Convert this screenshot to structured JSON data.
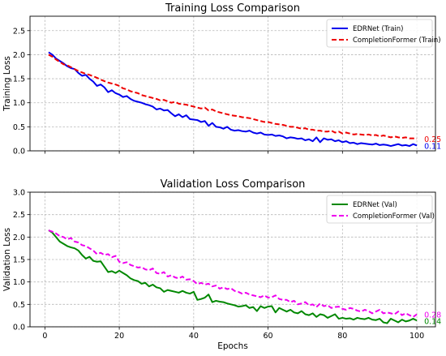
{
  "chart_data": [
    {
      "type": "line",
      "title": "Training Loss Comparison",
      "xlabel": "",
      "ylabel": "Training Loss",
      "xlim": [
        -4,
        105
      ],
      "ylim": [
        0,
        2.8
      ],
      "xticks": [
        0,
        20,
        40,
        60,
        80,
        100
      ],
      "xtick_labels": [
        "",
        "",
        "",
        "",
        "",
        ""
      ],
      "yticks": [
        0.0,
        0.5,
        1.0,
        1.5,
        2.0,
        2.5
      ],
      "ytick_labels": [
        "0.0",
        "0.5",
        "1.0",
        "1.5",
        "2.0",
        "2.5"
      ],
      "grid": true,
      "legend_position": "top-right",
      "series": [
        {
          "name": "EDRNet (Train)",
          "color": "#0000ee",
          "style": "solid",
          "end_label": "0.11",
          "x": [
            1,
            2,
            3,
            4,
            5,
            6,
            7,
            8,
            9,
            10,
            11,
            12,
            13,
            14,
            15,
            16,
            17,
            18,
            19,
            20,
            21,
            22,
            23,
            24,
            25,
            26,
            27,
            28,
            29,
            30,
            31,
            32,
            33,
            34,
            35,
            36,
            37,
            38,
            39,
            40,
            41,
            42,
            43,
            44,
            45,
            46,
            47,
            48,
            49,
            50,
            51,
            52,
            53,
            54,
            55,
            56,
            57,
            58,
            59,
            60,
            61,
            62,
            63,
            64,
            65,
            66,
            67,
            68,
            69,
            70,
            71,
            72,
            73,
            74,
            75,
            76,
            77,
            78,
            79,
            80,
            81,
            82,
            83,
            84,
            85,
            86,
            87,
            88,
            89,
            90,
            91,
            92,
            93,
            94,
            95,
            96,
            97,
            98,
            99,
            100
          ],
          "values": [
            2.05,
            2.0,
            1.92,
            1.87,
            1.82,
            1.76,
            1.72,
            1.7,
            1.62,
            1.56,
            1.58,
            1.5,
            1.44,
            1.35,
            1.38,
            1.32,
            1.22,
            1.26,
            1.2,
            1.17,
            1.12,
            1.14,
            1.08,
            1.04,
            1.02,
            1.0,
            0.97,
            0.95,
            0.92,
            0.86,
            0.88,
            0.84,
            0.85,
            0.78,
            0.72,
            0.76,
            0.7,
            0.74,
            0.66,
            0.65,
            0.64,
            0.6,
            0.62,
            0.52,
            0.58,
            0.5,
            0.49,
            0.46,
            0.5,
            0.44,
            0.42,
            0.43,
            0.41,
            0.4,
            0.42,
            0.38,
            0.36,
            0.38,
            0.34,
            0.33,
            0.34,
            0.31,
            0.32,
            0.3,
            0.26,
            0.28,
            0.27,
            0.25,
            0.26,
            0.22,
            0.24,
            0.2,
            0.28,
            0.18,
            0.26,
            0.23,
            0.24,
            0.2,
            0.22,
            0.18,
            0.2,
            0.16,
            0.17,
            0.14,
            0.16,
            0.15,
            0.14,
            0.13,
            0.15,
            0.12,
            0.13,
            0.12,
            0.1,
            0.12,
            0.14,
            0.11,
            0.12,
            0.1,
            0.14,
            0.11
          ]
        },
        {
          "name": "CompletionFormer (Train)",
          "color": "#ee0000",
          "style": "dashed",
          "end_label": "0.25",
          "x": [
            1,
            2,
            3,
            4,
            5,
            6,
            7,
            8,
            9,
            10,
            11,
            12,
            13,
            14,
            15,
            16,
            17,
            18,
            19,
            20,
            21,
            22,
            23,
            24,
            25,
            26,
            27,
            28,
            29,
            30,
            31,
            32,
            33,
            34,
            35,
            36,
            37,
            38,
            39,
            40,
            41,
            42,
            43,
            44,
            45,
            46,
            47,
            48,
            49,
            50,
            51,
            52,
            53,
            54,
            55,
            56,
            57,
            58,
            59,
            60,
            61,
            62,
            63,
            64,
            65,
            66,
            67,
            68,
            69,
            70,
            71,
            72,
            73,
            74,
            75,
            76,
            77,
            78,
            79,
            80,
            81,
            82,
            83,
            84,
            85,
            86,
            87,
            88,
            89,
            90,
            91,
            92,
            93,
            94,
            95,
            96,
            97,
            98,
            99,
            100
          ],
          "values": [
            2.0,
            1.96,
            1.9,
            1.85,
            1.8,
            1.78,
            1.74,
            1.7,
            1.66,
            1.63,
            1.6,
            1.58,
            1.55,
            1.52,
            1.48,
            1.45,
            1.42,
            1.4,
            1.38,
            1.35,
            1.3,
            1.28,
            1.24,
            1.22,
            1.2,
            1.16,
            1.14,
            1.12,
            1.1,
            1.08,
            1.05,
            1.06,
            1.03,
            1.0,
            1.02,
            0.98,
            0.97,
            0.96,
            0.94,
            0.92,
            0.9,
            0.88,
            0.9,
            0.84,
            0.86,
            0.82,
            0.8,
            0.78,
            0.76,
            0.74,
            0.73,
            0.72,
            0.7,
            0.69,
            0.68,
            0.66,
            0.64,
            0.62,
            0.6,
            0.6,
            0.58,
            0.56,
            0.55,
            0.54,
            0.52,
            0.5,
            0.5,
            0.48,
            0.46,
            0.47,
            0.44,
            0.44,
            0.42,
            0.42,
            0.4,
            0.4,
            0.42,
            0.38,
            0.4,
            0.36,
            0.38,
            0.36,
            0.34,
            0.35,
            0.34,
            0.33,
            0.34,
            0.32,
            0.33,
            0.3,
            0.32,
            0.3,
            0.28,
            0.3,
            0.28,
            0.27,
            0.28,
            0.26,
            0.26,
            0.25
          ]
        }
      ]
    },
    {
      "type": "line",
      "title": "Validation Loss Comparison",
      "xlabel": "Epochs",
      "ylabel": "Validation Loss",
      "xlim": [
        -4,
        105
      ],
      "ylim": [
        0,
        3.0
      ],
      "xticks": [
        0,
        20,
        40,
        60,
        80,
        100
      ],
      "xtick_labels": [
        "0",
        "20",
        "40",
        "60",
        "80",
        "100"
      ],
      "yticks": [
        0.0,
        0.5,
        1.0,
        1.5,
        2.0,
        2.5,
        3.0
      ],
      "ytick_labels": [
        "0.0",
        "0.5",
        "1.0",
        "1.5",
        "2.0",
        "2.5",
        "3.0"
      ],
      "grid": true,
      "legend_position": "top-right",
      "series": [
        {
          "name": "EDRNet (Val)",
          "color": "#008800",
          "style": "solid",
          "end_label": "0.14",
          "x": [
            1,
            2,
            3,
            4,
            5,
            6,
            7,
            8,
            9,
            10,
            11,
            12,
            13,
            14,
            15,
            16,
            17,
            18,
            19,
            20,
            21,
            22,
            23,
            24,
            25,
            26,
            27,
            28,
            29,
            30,
            31,
            32,
            33,
            34,
            35,
            36,
            37,
            38,
            39,
            40,
            41,
            42,
            43,
            44,
            45,
            46,
            47,
            48,
            49,
            50,
            51,
            52,
            53,
            54,
            55,
            56,
            57,
            58,
            59,
            60,
            61,
            62,
            63,
            64,
            65,
            66,
            67,
            68,
            69,
            70,
            71,
            72,
            73,
            74,
            75,
            76,
            77,
            78,
            79,
            80,
            81,
            82,
            83,
            84,
            85,
            86,
            87,
            88,
            89,
            90,
            91,
            92,
            93,
            94,
            95,
            96,
            97,
            98,
            99,
            100
          ],
          "values": [
            2.15,
            2.1,
            2.0,
            1.9,
            1.85,
            1.8,
            1.77,
            1.75,
            1.7,
            1.6,
            1.52,
            1.56,
            1.47,
            1.45,
            1.46,
            1.34,
            1.22,
            1.24,
            1.2,
            1.25,
            1.2,
            1.15,
            1.08,
            1.04,
            1.02,
            0.96,
            0.98,
            0.9,
            0.94,
            0.88,
            0.86,
            0.78,
            0.82,
            0.8,
            0.78,
            0.76,
            0.8,
            0.76,
            0.74,
            0.78,
            0.6,
            0.62,
            0.65,
            0.72,
            0.55,
            0.58,
            0.56,
            0.55,
            0.52,
            0.5,
            0.48,
            0.45,
            0.46,
            0.48,
            0.42,
            0.44,
            0.35,
            0.46,
            0.42,
            0.45,
            0.46,
            0.32,
            0.42,
            0.38,
            0.34,
            0.38,
            0.32,
            0.3,
            0.35,
            0.28,
            0.26,
            0.3,
            0.22,
            0.28,
            0.26,
            0.2,
            0.24,
            0.28,
            0.18,
            0.2,
            0.18,
            0.19,
            0.16,
            0.2,
            0.18,
            0.17,
            0.2,
            0.16,
            0.15,
            0.18,
            0.1,
            0.08,
            0.18,
            0.14,
            0.1,
            0.16,
            0.12,
            0.14,
            0.18,
            0.14
          ]
        },
        {
          "name": "CompletionFormer (Val)",
          "color": "#ee00ee",
          "style": "dashed",
          "end_label": "0.28",
          "x": [
            1,
            2,
            3,
            4,
            5,
            6,
            7,
            8,
            9,
            10,
            11,
            12,
            13,
            14,
            15,
            16,
            17,
            18,
            19,
            20,
            21,
            22,
            23,
            24,
            25,
            26,
            27,
            28,
            29,
            30,
            31,
            32,
            33,
            34,
            35,
            36,
            37,
            38,
            39,
            40,
            41,
            42,
            43,
            44,
            45,
            46,
            47,
            48,
            49,
            50,
            51,
            52,
            53,
            54,
            55,
            56,
            57,
            58,
            59,
            60,
            61,
            62,
            63,
            64,
            65,
            66,
            67,
            68,
            69,
            70,
            71,
            72,
            73,
            74,
            75,
            76,
            77,
            78,
            79,
            80,
            81,
            82,
            83,
            84,
            85,
            86,
            87,
            88,
            89,
            90,
            91,
            92,
            93,
            94,
            95,
            96,
            97,
            98,
            99,
            100
          ],
          "values": [
            2.15,
            2.12,
            2.08,
            2.02,
            2.0,
            1.95,
            1.98,
            1.9,
            1.88,
            1.82,
            1.8,
            1.75,
            1.7,
            1.62,
            1.65,
            1.6,
            1.62,
            1.55,
            1.58,
            1.45,
            1.42,
            1.44,
            1.38,
            1.35,
            1.32,
            1.33,
            1.28,
            1.26,
            1.3,
            1.2,
            1.18,
            1.22,
            1.12,
            1.15,
            1.1,
            1.08,
            1.12,
            1.05,
            1.06,
            1.02,
            0.95,
            0.98,
            0.94,
            0.96,
            0.9,
            0.92,
            0.85,
            0.88,
            0.84,
            0.86,
            0.8,
            0.78,
            0.74,
            0.76,
            0.72,
            0.7,
            0.68,
            0.66,
            0.7,
            0.65,
            0.66,
            0.7,
            0.62,
            0.6,
            0.6,
            0.55,
            0.58,
            0.5,
            0.52,
            0.55,
            0.48,
            0.5,
            0.44,
            0.52,
            0.46,
            0.48,
            0.42,
            0.44,
            0.45,
            0.4,
            0.38,
            0.42,
            0.4,
            0.36,
            0.34,
            0.38,
            0.35,
            0.3,
            0.34,
            0.38,
            0.3,
            0.32,
            0.3,
            0.28,
            0.34,
            0.26,
            0.3,
            0.26,
            0.22,
            0.28
          ]
        }
      ]
    }
  ]
}
